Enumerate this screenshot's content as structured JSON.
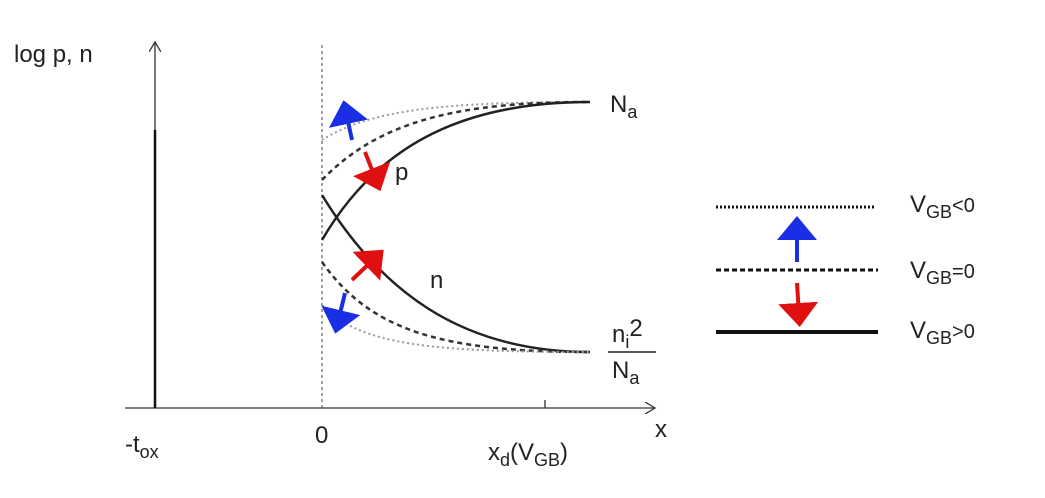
{
  "axes": {
    "y_label": "log p, n",
    "x_label": "x",
    "origin_label": "0",
    "oxide_label": {
      "main": "-t",
      "sub": "ox"
    },
    "depletion_label": {
      "main": "x",
      "sub": "d",
      "open": "(V",
      "open_sub": "GB",
      "close": ")"
    }
  },
  "curves": {
    "majority_level": {
      "main": "N",
      "sub": "a"
    },
    "p_label": "p",
    "n_label": "n",
    "minority_level": {
      "num_main": "n",
      "num_sub": "i",
      "num_sup": "2",
      "den_main": "N",
      "den_sub": "a"
    }
  },
  "legend": [
    {
      "main": "V",
      "sub": "GB",
      "relation": "<0"
    },
    {
      "main": "V",
      "sub": "GB",
      "relation": "=0"
    },
    {
      "main": "V",
      "sub": "GB",
      "relation": ">0"
    }
  ]
}
